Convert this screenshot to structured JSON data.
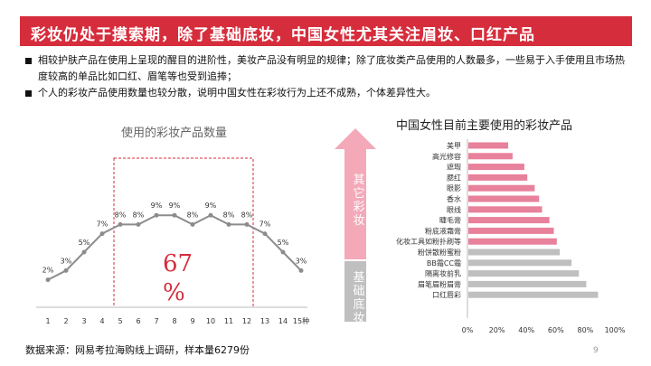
{
  "title": "彩妆仍处于摸索期，除了基础底妆，中国女性尤其关注眉妆、口红产品",
  "bullets": [
    "相较护肤产品在使用上呈现的醒目的进阶性，美妆产品没有明显的规律；除了底妆类产品使用的人数最多，一些易于入手使用且市场热度较高的单品比如口红、眉笔等也受到追捧；",
    "个人的彩妆产品使用数量也较分散，说明中国女性在彩妆行为上还不成熟，个体差异性大。"
  ],
  "highlight_pct": "67%",
  "arrow": {
    "top_text": "其它彩妆",
    "bottom_text": "基础底妆",
    "top_color": "#f4a9b8",
    "bottom_color": "#bfbfbf"
  },
  "source": "数据来源：网易考拉海购线上调研，样本量6279份",
  "page_number": "9",
  "colors": {
    "accent": "#d62d3c",
    "bar_pink": "#e8819b",
    "bar_gray": "#bfbfbf",
    "line": "#8c8c8c"
  },
  "chart_data": [
    {
      "type": "line",
      "title": "使用的彩妆产品数量",
      "x": [
        "1",
        "2",
        "3",
        "4",
        "5",
        "6",
        "7",
        "8",
        "9",
        "10",
        "11",
        "12",
        "13",
        "14",
        "15种"
      ],
      "values": [
        2,
        3,
        5,
        7,
        8,
        8,
        9,
        9,
        8,
        9,
        8,
        8,
        7,
        5,
        3
      ],
      "labels": [
        "2%",
        "3%",
        "5%",
        "7%",
        "8%",
        "8%",
        "9%",
        "9%",
        "8%",
        "9%",
        "8%",
        "8%",
        "7%",
        "5%",
        "3%"
      ],
      "highlight_range": [
        "5",
        "12"
      ]
    },
    {
      "type": "bar",
      "orientation": "horizontal",
      "title": "中国女性目前主要使用的彩妆产品",
      "categories": [
        "美甲",
        "高光修容",
        "遮瑕",
        "腮红",
        "眼影",
        "香水",
        "眼线",
        "睫毛膏",
        "粉底液霜膏",
        "化妆工具如粉扑刷等",
        "粉饼散粉蜜粉",
        "BB霜CC霜",
        "隔离妆前乳",
        "眉笔眉粉眉膏",
        "口红唇彩"
      ],
      "values": [
        27,
        30,
        38,
        40,
        45,
        48,
        50,
        55,
        58,
        60,
        62,
        70,
        75,
        80,
        88
      ],
      "group": [
        "other",
        "other",
        "other",
        "other",
        "other",
        "other",
        "other",
        "other",
        "other",
        "other",
        "base",
        "base",
        "base",
        "base",
        "base"
      ],
      "xlim": [
        0,
        100
      ],
      "xticks": [
        "0%",
        "20%",
        "40%",
        "60%",
        "80%",
        "100%"
      ]
    }
  ]
}
